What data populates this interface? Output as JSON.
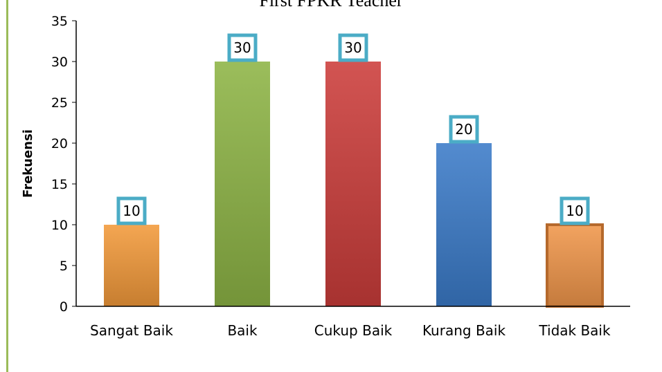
{
  "chart_data": {
    "type": "bar",
    "title": "First FPKR Teacher",
    "xlabel": "",
    "ylabel": "Frekuensi",
    "categories": [
      "Sangat Baik",
      "Baik",
      "Cukup Baik",
      "Kurang Baik",
      "Tidak Baik"
    ],
    "values": [
      10,
      30,
      30,
      20,
      10
    ],
    "data_labels": [
      "10",
      "30",
      "30",
      "20",
      "10"
    ],
    "colors": [
      "#f39a3a",
      "#8db445",
      "#cc3d3a",
      "#3b7bc9",
      "#f0964a"
    ],
    "ylim": [
      0,
      35
    ],
    "yticks": [
      0,
      5,
      10,
      15,
      20,
      25,
      30,
      35
    ],
    "grid": false,
    "legend": "none",
    "label_box_color": "#4bacc6"
  }
}
